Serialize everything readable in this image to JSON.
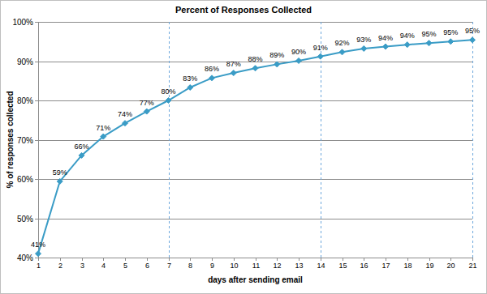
{
  "chart_data": {
    "type": "line",
    "title": "Percent of Responses Collected",
    "x_label": "days after sending email",
    "y_label": "% of responses collected",
    "x": [
      1,
      2,
      3,
      4,
      5,
      6,
      7,
      8,
      9,
      10,
      11,
      12,
      13,
      14,
      15,
      16,
      17,
      18,
      19,
      20,
      21
    ],
    "values": [
      41,
      59.4,
      66,
      70.8,
      74.2,
      77.2,
      80,
      83.3,
      85.7,
      87,
      88.2,
      89.2,
      90.1,
      91.2,
      92.3,
      93.2,
      93.7,
      94.2,
      94.6,
      95,
      95.4
    ],
    "value_labels": [
      "41%",
      "59%",
      "66%",
      "71%",
      "74%",
      "77%",
      "80%",
      "83%",
      "86%",
      "87%",
      "88%",
      "89%",
      "90%",
      "91%",
      "92%",
      "93%",
      "94%",
      "94%",
      "95%",
      "95%",
      "95%"
    ],
    "color": "#3a9cc6",
    "marker": "diamond",
    "data_labels": true,
    "grid": true,
    "xlim": [
      1,
      21
    ],
    "xticks": [
      1,
      2,
      3,
      4,
      5,
      6,
      7,
      8,
      9,
      10,
      11,
      12,
      13,
      14,
      15,
      16,
      17,
      18,
      19,
      20,
      21
    ],
    "ylim": [
      40,
      100
    ],
    "yticks": [
      {
        "value": 40,
        "label": "40%"
      },
      {
        "value": 50,
        "label": "50%"
      },
      {
        "value": 60,
        "label": "60%"
      },
      {
        "value": 70,
        "label": "70%"
      },
      {
        "value": 80,
        "label": "80%"
      },
      {
        "value": 90,
        "label": "90%"
      },
      {
        "value": 100,
        "label": "100%"
      }
    ],
    "vlines": [
      7,
      14,
      21
    ]
  }
}
